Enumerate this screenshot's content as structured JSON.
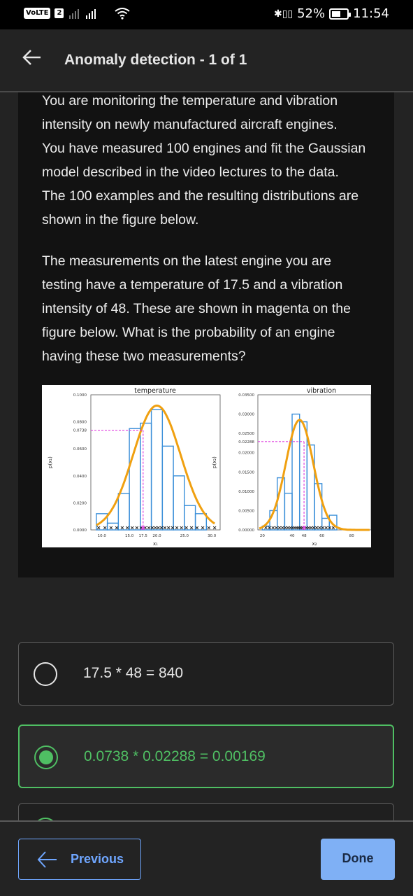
{
  "status_bar": {
    "volte": "VoLTE",
    "sim": "2",
    "battery": "52%",
    "time": "11:54"
  },
  "header": {
    "title": "Anomaly detection - 1 of 1"
  },
  "question": {
    "paragraph_1_lines": [
      "You are monitoring the temperature and vibration",
      "intensity on newly manufactured aircraft engines.",
      "You have measured 100 engines and fit the Gaussian",
      "model described in the video lectures to the data.",
      "The 100 examples and the resulting distributions are",
      "shown in the figure below."
    ],
    "paragraph_2_lines": [
      "The measurements on the latest engine you are",
      "testing have a temperature of 17.5 and a vibration",
      "intensity of 48. These are shown in magenta on the",
      "figure below. What is the probability of an engine",
      "having these two measurements?"
    ]
  },
  "chart_data": [
    {
      "type": "bar",
      "title": "temperature",
      "xlabel": "x₁",
      "ylabel": "p(x₁)",
      "ytick_labels": [
        "0.1000",
        "0.0800",
        "0.0738",
        "0.0600",
        "0.0400",
        "0.0200",
        "0.0000"
      ],
      "xtick_labels": [
        "10.0",
        "15.0",
        "17.5",
        "20.0",
        "25.0",
        "30.0"
      ],
      "ylim": [
        0,
        0.1
      ],
      "xlim": [
        8,
        31.5
      ],
      "bins": [
        {
          "x0": 9,
          "x1": 11,
          "value": 0.012
        },
        {
          "x0": 11,
          "x1": 13,
          "value": 0.005
        },
        {
          "x0": 13,
          "x1": 15,
          "value": 0.027
        },
        {
          "x0": 15,
          "x1": 17,
          "value": 0.075
        },
        {
          "x0": 17,
          "x1": 19,
          "value": 0.079
        },
        {
          "x0": 19,
          "x1": 21,
          "value": 0.089
        },
        {
          "x0": 21,
          "x1": 23,
          "value": 0.062
        },
        {
          "x0": 23,
          "x1": 25,
          "value": 0.04
        },
        {
          "x0": 25,
          "x1": 27,
          "value": 0.018
        },
        {
          "x0": 27,
          "x1": 29,
          "value": 0.012
        }
      ],
      "gaussian": {
        "mean": 20,
        "std": 4.3,
        "peak": 0.092
      },
      "highlight": {
        "x": 17.5,
        "y": 0.0738,
        "color": "#e040e0"
      },
      "colors": {
        "bars": "#3a8fd9",
        "curve": "#f0a010"
      }
    },
    {
      "type": "bar",
      "title": "vibration",
      "xlabel": "x₂",
      "ylabel": "p(x₂)",
      "ytick_labels": [
        "0.03500",
        "0.03000",
        "0.02500",
        "0.02288",
        "0.02000",
        "0.01500",
        "0.01000",
        "0.00500",
        "0.00000"
      ],
      "xtick_labels": [
        "20",
        "40",
        "48",
        "60",
        "80"
      ],
      "ylim": [
        0,
        0.035
      ],
      "xlim": [
        17,
        93
      ],
      "bins": [
        {
          "x0": 20,
          "x1": 25,
          "value": 0.001
        },
        {
          "x0": 25,
          "x1": 30,
          "value": 0.005
        },
        {
          "x0": 30,
          "x1": 35,
          "value": 0.0135
        },
        {
          "x0": 35,
          "x1": 40,
          "value": 0.0095
        },
        {
          "x0": 40,
          "x1": 45,
          "value": 0.03
        },
        {
          "x0": 45,
          "x1": 50,
          "value": 0.028
        },
        {
          "x0": 50,
          "x1": 55,
          "value": 0.022
        },
        {
          "x0": 55,
          "x1": 60,
          "value": 0.012
        },
        {
          "x0": 60,
          "x1": 65,
          "value": 0.003
        },
        {
          "x0": 65,
          "x1": 70,
          "value": 0.0038
        }
      ],
      "gaussian": {
        "mean": 45,
        "std": 9.2,
        "peak": 0.0285
      },
      "highlight": {
        "x": 48,
        "y": 0.02288,
        "color": "#e040e0"
      },
      "colors": {
        "bars": "#3a8fd9",
        "curve": "#f0a010"
      }
    }
  ],
  "options": [
    {
      "label": "17.5 * 48 = 840",
      "selected": false
    },
    {
      "label": "0.0738 * 0.02288 = 0.00169",
      "selected": true
    }
  ],
  "footer": {
    "previous_label": "Previous",
    "done_label": "Done"
  },
  "colors": {
    "accent_green": "#4fbf63",
    "accent_blue": "#6fa6ff",
    "magenta": "#e040e0"
  }
}
